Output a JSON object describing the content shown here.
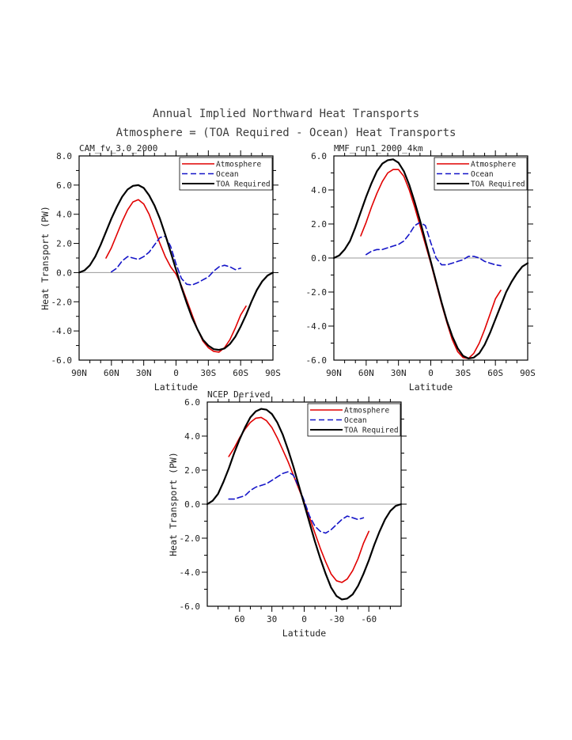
{
  "page": {
    "title": "Annual Implied Northward Heat Transports",
    "subtitle": "Atmosphere = (TOA Required - Ocean) Heat Transports"
  },
  "legend": {
    "entries": [
      {
        "label": "Atmosphere",
        "color": "#e10000",
        "dash": ""
      },
      {
        "label": "Ocean",
        "color": "#1515c8",
        "dash": "7,4"
      },
      {
        "label": "TOA Required",
        "color": "#000000",
        "dash": ""
      }
    ]
  },
  "colors": {
    "atmosphere": "#e10000",
    "ocean": "#1515c8",
    "toa_required": "#000000",
    "zero_line": "#999999"
  },
  "chart_data": [
    {
      "type": "line",
      "title": "CAM_fv_3.0_2000",
      "xlabel": "Latitude",
      "ylabel": "Heat Transport (PW)",
      "ylim": [
        -6,
        8
      ],
      "ytick": 2,
      "xlim": [
        90,
        -90
      ],
      "xticks": [
        {
          "v": 90,
          "l": "90N"
        },
        {
          "v": 60,
          "l": "60N"
        },
        {
          "v": 30,
          "l": "30N"
        },
        {
          "v": 0,
          "l": "0"
        },
        {
          "v": -30,
          "l": "30S"
        },
        {
          "v": -60,
          "l": "60S"
        },
        {
          "v": -90,
          "l": "90S"
        }
      ],
      "series": [
        {
          "name": "Atmosphere",
          "color": "#e10000",
          "dash": "",
          "x": [
            65,
            60,
            55,
            50,
            45,
            40,
            35,
            30,
            25,
            20,
            15,
            10,
            5,
            0,
            -5,
            -10,
            -15,
            -20,
            -25,
            -30,
            -35,
            -40,
            -45,
            -50,
            -55,
            -60,
            -65
          ],
          "y": [
            1.0,
            1.7,
            2.6,
            3.5,
            4.3,
            4.85,
            5.0,
            4.7,
            4.0,
            3.0,
            2.0,
            1.1,
            0.4,
            -0.1,
            -0.9,
            -1.9,
            -2.9,
            -3.9,
            -4.7,
            -5.15,
            -5.4,
            -5.45,
            -5.15,
            -4.6,
            -3.8,
            -2.9,
            -2.3
          ]
        },
        {
          "name": "Ocean",
          "color": "#1515c8",
          "dash": "7,4",
          "x": [
            60,
            55,
            50,
            45,
            40,
            35,
            30,
            25,
            20,
            15,
            10,
            5,
            0,
            -5,
            -10,
            -15,
            -20,
            -25,
            -30,
            -35,
            -40,
            -45,
            -50,
            -55,
            -60
          ],
          "y": [
            0.05,
            0.3,
            0.8,
            1.1,
            1.0,
            0.9,
            1.1,
            1.4,
            1.9,
            2.4,
            2.5,
            1.8,
            0.6,
            -0.4,
            -0.8,
            -0.85,
            -0.7,
            -0.5,
            -0.3,
            0.1,
            0.4,
            0.5,
            0.4,
            0.2,
            0.3
          ]
        },
        {
          "name": "TOA Required",
          "color": "#000000",
          "dash": "",
          "x": [
            90,
            85,
            80,
            75,
            70,
            65,
            60,
            55,
            50,
            45,
            40,
            35,
            30,
            25,
            20,
            15,
            10,
            5,
            0,
            -5,
            -10,
            -15,
            -20,
            -25,
            -30,
            -35,
            -40,
            -45,
            -50,
            -55,
            -60,
            -65,
            -70,
            -75,
            -80,
            -85,
            -90
          ],
          "y": [
            0,
            0.15,
            0.5,
            1.1,
            1.9,
            2.8,
            3.7,
            4.5,
            5.2,
            5.7,
            5.95,
            6.0,
            5.8,
            5.3,
            4.6,
            3.7,
            2.6,
            1.4,
            0.2,
            -1.0,
            -2.1,
            -3.1,
            -3.9,
            -4.6,
            -5.0,
            -5.25,
            -5.3,
            -5.2,
            -4.9,
            -4.4,
            -3.7,
            -2.9,
            -2.0,
            -1.2,
            -0.6,
            -0.2,
            0
          ]
        }
      ]
    },
    {
      "type": "line",
      "title": "MMF_run1_2000_4km",
      "xlabel": "Latitude",
      "ylabel": "",
      "ylim": [
        -6,
        6
      ],
      "ytick": 2,
      "xlim": [
        90,
        -90
      ],
      "xticks": [
        {
          "v": 90,
          "l": "90N"
        },
        {
          "v": 60,
          "l": "60N"
        },
        {
          "v": 30,
          "l": "30N"
        },
        {
          "v": 0,
          "l": "0"
        },
        {
          "v": -30,
          "l": "30S"
        },
        {
          "v": -60,
          "l": "60S"
        },
        {
          "v": -90,
          "l": "90S"
        }
      ],
      "series": [
        {
          "name": "Atmosphere",
          "color": "#e10000",
          "dash": "",
          "x": [
            65,
            60,
            55,
            50,
            45,
            40,
            35,
            30,
            25,
            20,
            15,
            10,
            5,
            0,
            -5,
            -10,
            -15,
            -20,
            -25,
            -30,
            -35,
            -40,
            -45,
            -50,
            -55,
            -60,
            -65
          ],
          "y": [
            1.3,
            2.1,
            3.0,
            3.8,
            4.5,
            5.0,
            5.2,
            5.2,
            4.8,
            4.0,
            3.0,
            1.9,
            0.8,
            -0.3,
            -1.5,
            -2.7,
            -3.8,
            -4.8,
            -5.5,
            -5.85,
            -5.9,
            -5.6,
            -5.0,
            -4.2,
            -3.3,
            -2.4,
            -1.9
          ]
        },
        {
          "name": "Ocean",
          "color": "#1515c8",
          "dash": "7,4",
          "x": [
            60,
            55,
            50,
            45,
            40,
            35,
            30,
            25,
            20,
            15,
            10,
            5,
            0,
            -5,
            -10,
            -15,
            -20,
            -25,
            -30,
            -35,
            -40,
            -45,
            -50,
            -55,
            -60,
            -65
          ],
          "y": [
            0.2,
            0.4,
            0.5,
            0.5,
            0.6,
            0.7,
            0.8,
            1.0,
            1.4,
            1.9,
            2.1,
            1.9,
            0.9,
            0.0,
            -0.4,
            -0.4,
            -0.3,
            -0.2,
            -0.1,
            0.1,
            0.1,
            0.0,
            -0.2,
            -0.3,
            -0.4,
            -0.45
          ]
        },
        {
          "name": "TOA Required",
          "color": "#000000",
          "dash": "",
          "x": [
            90,
            85,
            80,
            75,
            70,
            65,
            60,
            55,
            50,
            45,
            40,
            35,
            30,
            25,
            20,
            15,
            10,
            5,
            0,
            -5,
            -10,
            -15,
            -20,
            -25,
            -30,
            -35,
            -40,
            -45,
            -50,
            -55,
            -60,
            -65,
            -70,
            -75,
            -80,
            -85,
            -90
          ],
          "y": [
            0,
            0.15,
            0.5,
            1.0,
            1.8,
            2.7,
            3.6,
            4.4,
            5.1,
            5.55,
            5.75,
            5.8,
            5.6,
            5.1,
            4.3,
            3.3,
            2.2,
            1.0,
            -0.2,
            -1.4,
            -2.6,
            -3.7,
            -4.6,
            -5.3,
            -5.75,
            -5.9,
            -5.85,
            -5.6,
            -5.1,
            -4.4,
            -3.6,
            -2.8,
            -2.0,
            -1.4,
            -0.9,
            -0.5,
            -0.3
          ]
        }
      ]
    },
    {
      "type": "line",
      "title": "NCEP Derived",
      "xlabel": "Latitude",
      "ylabel": "Heat Transport (PW)",
      "ylim": [
        -6,
        6
      ],
      "ytick": 2,
      "xlim": [
        90,
        -90
      ],
      "xticks": [
        {
          "v": 60,
          "l": "60"
        },
        {
          "v": 30,
          "l": "30"
        },
        {
          "v": 0,
          "l": "0"
        },
        {
          "v": -30,
          "l": "-30"
        },
        {
          "v": -60,
          "l": "-60"
        }
      ],
      "series": [
        {
          "name": "Atmosphere",
          "color": "#e10000",
          "dash": "",
          "x": [
            70,
            65,
            60,
            55,
            50,
            45,
            40,
            35,
            30,
            25,
            20,
            15,
            10,
            5,
            0,
            -5,
            -10,
            -15,
            -20,
            -25,
            -30,
            -35,
            -40,
            -45,
            -50,
            -55,
            -60
          ],
          "y": [
            2.8,
            3.3,
            3.9,
            4.4,
            4.8,
            5.05,
            5.1,
            4.9,
            4.5,
            3.9,
            3.2,
            2.5,
            1.7,
            0.9,
            0.1,
            -0.8,
            -1.7,
            -2.6,
            -3.4,
            -4.1,
            -4.5,
            -4.6,
            -4.4,
            -3.9,
            -3.2,
            -2.3,
            -1.6
          ]
        },
        {
          "name": "Ocean",
          "color": "#1515c8",
          "dash": "7,4",
          "x": [
            70,
            65,
            60,
            55,
            50,
            45,
            40,
            35,
            30,
            25,
            20,
            15,
            10,
            5,
            0,
            -5,
            -10,
            -15,
            -20,
            -25,
            -30,
            -35,
            -40,
            -45,
            -50,
            -55
          ],
          "y": [
            0.3,
            0.3,
            0.4,
            0.5,
            0.8,
            1.0,
            1.1,
            1.2,
            1.4,
            1.6,
            1.8,
            1.9,
            1.7,
            1.0,
            0.2,
            -0.7,
            -1.3,
            -1.6,
            -1.7,
            -1.5,
            -1.2,
            -0.9,
            -0.7,
            -0.8,
            -0.9,
            -0.8
          ]
        },
        {
          "name": "TOA Required",
          "color": "#000000",
          "dash": "",
          "x": [
            90,
            85,
            80,
            75,
            70,
            65,
            60,
            55,
            50,
            45,
            40,
            35,
            30,
            25,
            20,
            15,
            10,
            5,
            0,
            -5,
            -10,
            -15,
            -20,
            -25,
            -30,
            -35,
            -40,
            -45,
            -50,
            -55,
            -60,
            -65,
            -70,
            -75,
            -80,
            -85,
            -90
          ],
          "y": [
            0,
            0.2,
            0.6,
            1.3,
            2.1,
            3.0,
            3.8,
            4.5,
            5.1,
            5.45,
            5.6,
            5.55,
            5.3,
            4.8,
            4.1,
            3.2,
            2.2,
            1.1,
            0,
            -1.1,
            -2.2,
            -3.2,
            -4.1,
            -4.9,
            -5.4,
            -5.6,
            -5.55,
            -5.3,
            -4.8,
            -4.1,
            -3.3,
            -2.4,
            -1.6,
            -0.9,
            -0.4,
            -0.1,
            0
          ]
        }
      ]
    }
  ]
}
